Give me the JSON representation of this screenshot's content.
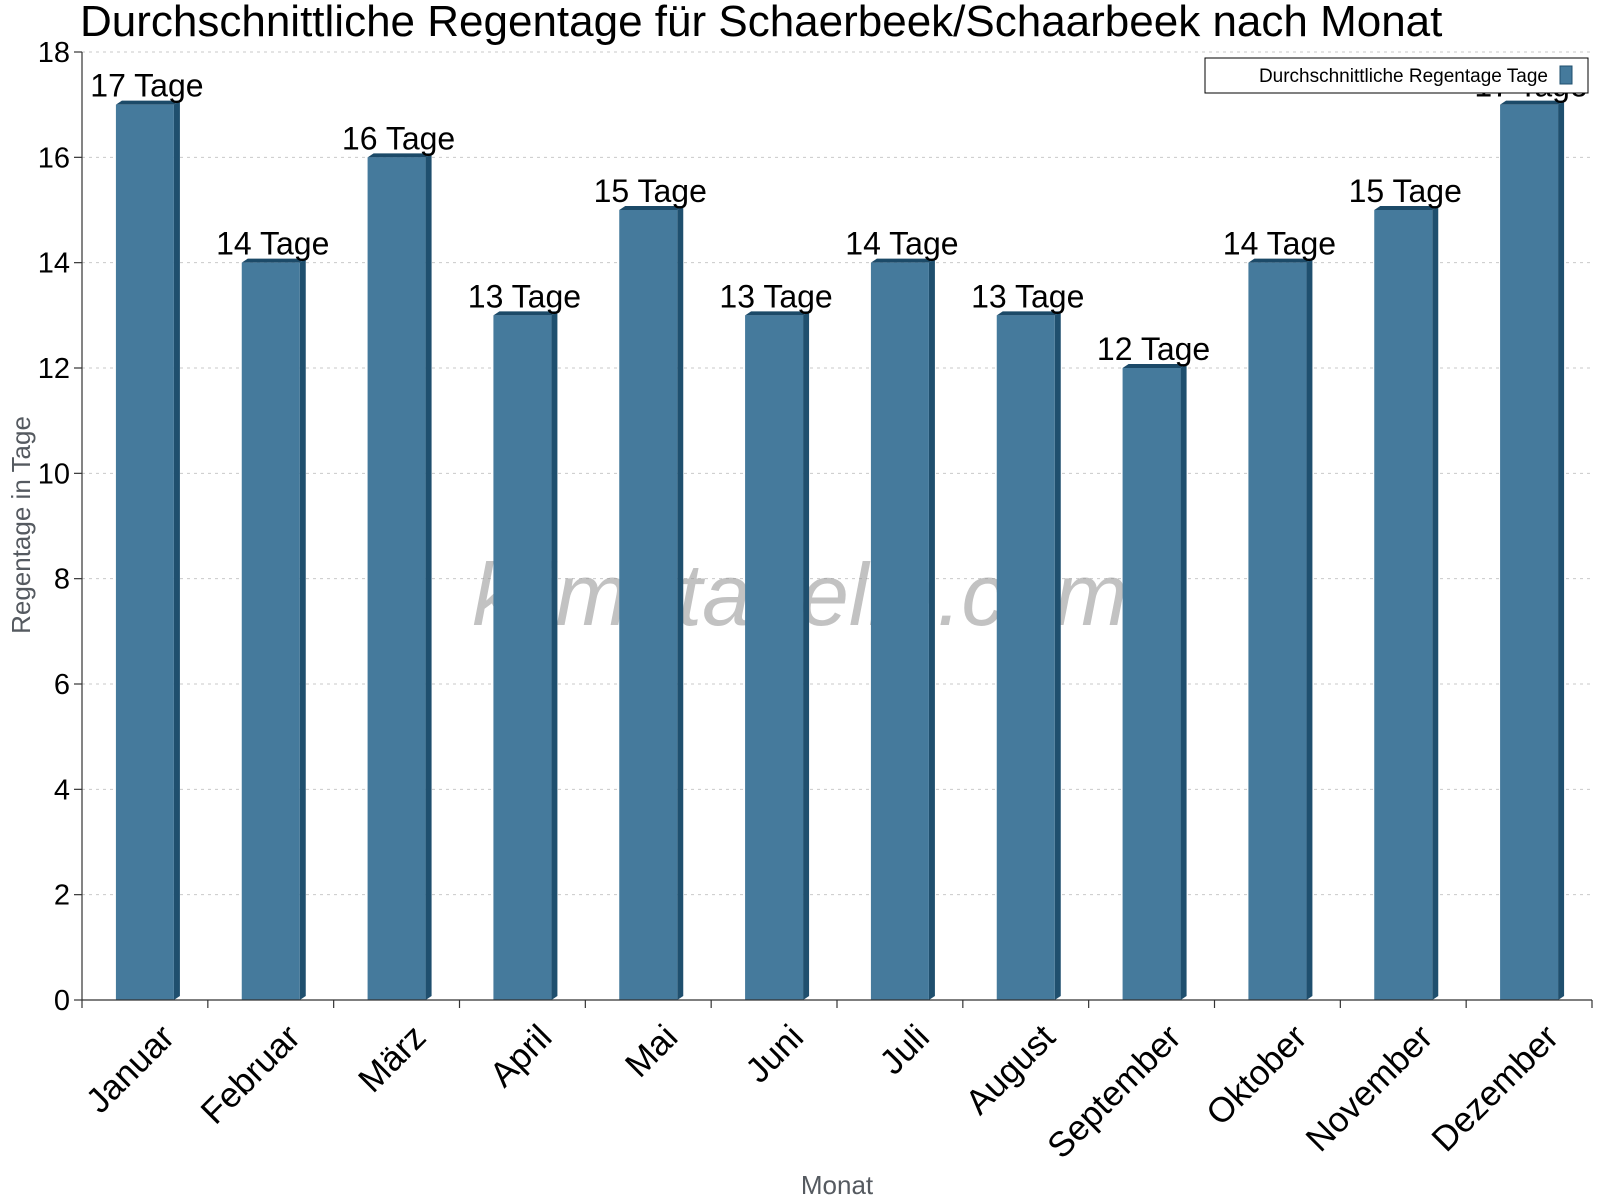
{
  "chart_data": {
    "type": "bar",
    "title": "Durchschnittliche Regentage für Schaerbeek/Schaarbeek nach Monat",
    "xlabel": "Monat",
    "ylabel": "Regentage in Tage",
    "ylim": [
      0,
      18
    ],
    "yticks": [
      0,
      2,
      4,
      6,
      8,
      10,
      12,
      14,
      16,
      18
    ],
    "grid": true,
    "legend_position": "top-right",
    "watermark": "klimatabelle.com",
    "categories": [
      "Januar",
      "Februar",
      "März",
      "April",
      "Mai",
      "Juni",
      "Juli",
      "August",
      "September",
      "Oktober",
      "November",
      "Dezember"
    ],
    "series": [
      {
        "name": "Durchschnittliche Regentage Tage",
        "color": "#457a9c",
        "values": [
          17,
          14,
          16,
          13,
          15,
          13,
          14,
          13,
          12,
          14,
          15,
          17
        ],
        "data_labels": [
          "17 Tage",
          "14 Tage",
          "16 Tage",
          "13 Tage",
          "15 Tage",
          "13 Tage",
          "14 Tage",
          "13 Tage",
          "12 Tage",
          "14 Tage",
          "15 Tage",
          "17 Tage"
        ]
      }
    ]
  }
}
